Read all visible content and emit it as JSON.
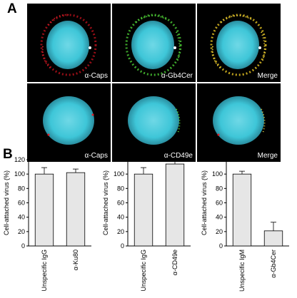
{
  "panel_a": {
    "letter": "A",
    "rows": [
      {
        "name": "gb4cer",
        "labels": [
          "α-Caps",
          "α-Gb4Cer",
          "Merge"
        ]
      },
      {
        "name": "cd49e",
        "labels": [
          "α-Caps",
          "α-CD49e",
          "Merge"
        ]
      }
    ],
    "colors": {
      "nucleus": "#3ec6d8",
      "caps": "#e0202a",
      "marker": "#5ae03c",
      "merge": "#f2d640",
      "background": "#000000"
    }
  },
  "panel_b": {
    "letter": "B"
  },
  "chart_data": [
    {
      "type": "bar",
      "ylabel": "Cell-attached virus (%)",
      "ylim": [
        0,
        120
      ],
      "yticks": [
        "0",
        "20",
        "40",
        "60",
        "80",
        "100",
        "120"
      ],
      "categories": [
        "Unspecific IgG",
        "α-Ku80"
      ],
      "values": [
        100,
        102
      ],
      "errors": [
        9,
        5
      ],
      "bar_color": "#e6e6e6",
      "grid": false
    },
    {
      "type": "bar",
      "ylabel": "Cell-attached virus (%)",
      "ylim": [
        0,
        120
      ],
      "yticks": [
        "0",
        "20",
        "40",
        "60",
        "80",
        "100",
        "120"
      ],
      "categories": [
        "Unspecific IgG",
        "α-CD49e"
      ],
      "values": [
        100,
        114
      ],
      "errors": [
        9,
        5
      ],
      "bar_color": "#e6e6e6",
      "grid": false
    },
    {
      "type": "bar",
      "ylabel": "Cell-attached virus (%)",
      "ylim": [
        0,
        120
      ],
      "yticks": [
        "0",
        "20",
        "40",
        "60",
        "80",
        "100",
        "120"
      ],
      "categories": [
        "Unspecific IgM",
        "α-Gb4Cer"
      ],
      "values": [
        100,
        21
      ],
      "errors": [
        4,
        12
      ],
      "bar_color": "#e6e6e6",
      "grid": false
    }
  ]
}
